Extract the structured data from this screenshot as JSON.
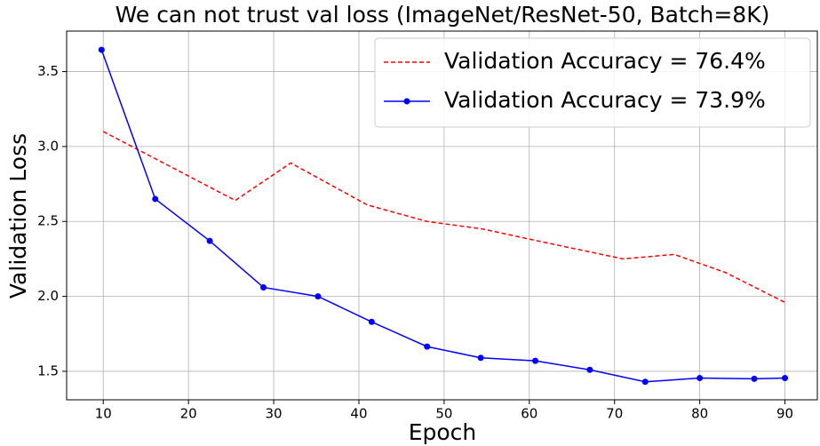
{
  "chart_data": {
    "type": "line",
    "title": "We can not trust val loss (ImageNet/ResNet-50, Batch=8K)",
    "xlabel": "Epoch",
    "ylabel": "Validation Loss",
    "xlim": [
      5.7,
      93.8
    ],
    "ylim": [
      1.31,
      3.77
    ],
    "xticks": [
      10,
      20,
      30,
      40,
      50,
      60,
      70,
      80,
      90
    ],
    "yticks": [
      {
        "value": 1.5,
        "label": "1.5"
      },
      {
        "value": 2.0,
        "label": "2.0"
      },
      {
        "value": 2.5,
        "label": "2.5"
      },
      {
        "value": 3.0,
        "label": "3.0"
      },
      {
        "value": 3.5,
        "label": "3.5"
      }
    ],
    "grid": true,
    "legend": "upper right",
    "series": [
      {
        "name": "Validation Accuracy = 76.4%",
        "color": "#ff0000",
        "linestyle": "dashed",
        "marker": "none",
        "x": [
          10,
          25.5,
          32,
          41,
          48,
          54.5,
          61,
          71,
          77,
          83,
          90
        ],
        "values": [
          3.1,
          2.64,
          2.89,
          2.61,
          2.5,
          2.45,
          2.37,
          2.25,
          2.28,
          2.16,
          1.96
        ]
      },
      {
        "name": "Validation Accuracy = 73.9%",
        "color": "#0000ff",
        "linestyle": "solid",
        "marker": "circle",
        "x": [
          9.8,
          16.1,
          22.5,
          28.8,
          35.2,
          41.5,
          48,
          54.3,
          60.7,
          67.1,
          73.6,
          80,
          86.4,
          90
        ],
        "values": [
          3.645,
          2.65,
          2.37,
          2.06,
          2.0,
          1.83,
          1.665,
          1.59,
          1.57,
          1.51,
          1.43,
          1.455,
          1.45,
          1.455
        ]
      }
    ]
  }
}
